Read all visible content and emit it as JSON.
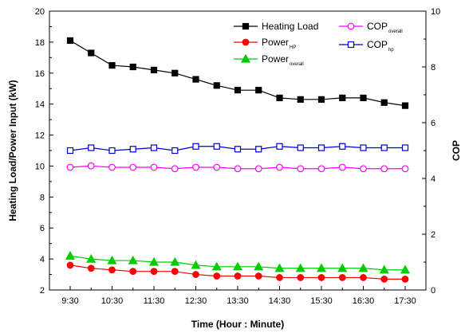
{
  "chart_data": {
    "type": "line",
    "xlabel": "Time (Hour : Minute)",
    "ylabel_left": "Heating Load/Power Input (kW)",
    "ylabel_right": "COP",
    "xlim": [
      "9:30",
      "17:30"
    ],
    "ylim_left": [
      2,
      20
    ],
    "ylim_right": [
      0,
      10
    ],
    "x_tick_labels": [
      "9:30",
      "10:30",
      "11:30",
      "12:30",
      "13:30",
      "14:30",
      "15:30",
      "16:30",
      "17:30"
    ],
    "y_left_tick_labels": [
      "2",
      "4",
      "6",
      "8",
      "10",
      "12",
      "14",
      "16",
      "18",
      "20"
    ],
    "y_right_tick_labels": [
      "0",
      "2",
      "4",
      "6",
      "8",
      "10"
    ],
    "x": [
      "9:30",
      "10:00",
      "10:30",
      "11:00",
      "11:30",
      "12:00",
      "12:30",
      "13:00",
      "13:30",
      "14:00",
      "14:30",
      "15:00",
      "15:30",
      "16:00",
      "16:30",
      "17:00",
      "17:30"
    ],
    "series": [
      {
        "name": "Heating Load",
        "sub": "",
        "axis": "left",
        "color": "#000000",
        "marker": "square",
        "filled": true,
        "values": [
          18.1,
          17.3,
          16.5,
          16.4,
          16.2,
          16.0,
          15.6,
          15.2,
          14.9,
          14.9,
          14.4,
          14.3,
          14.3,
          14.4,
          14.4,
          14.1,
          13.9
        ]
      },
      {
        "name": "Power",
        "sub": "HP",
        "axis": "left",
        "color": "#ff0000",
        "marker": "circle",
        "filled": true,
        "values": [
          3.6,
          3.4,
          3.3,
          3.2,
          3.2,
          3.2,
          3.0,
          2.9,
          2.9,
          2.9,
          2.8,
          2.8,
          2.8,
          2.8,
          2.8,
          2.7,
          2.7
        ]
      },
      {
        "name": "Power",
        "sub": "overall",
        "axis": "left",
        "color": "#00cc00",
        "marker": "triangle",
        "filled": true,
        "values": [
          4.2,
          4.0,
          3.9,
          3.9,
          3.8,
          3.8,
          3.6,
          3.5,
          3.5,
          3.5,
          3.4,
          3.4,
          3.4,
          3.4,
          3.4,
          3.3,
          3.3
        ]
      },
      {
        "name": "COP",
        "sub": "overall",
        "axis": "right",
        "color": "#ff00ff",
        "marker": "circle",
        "filled": false,
        "values": [
          4.4,
          4.45,
          4.4,
          4.4,
          4.4,
          4.35,
          4.4,
          4.4,
          4.35,
          4.35,
          4.4,
          4.35,
          4.35,
          4.4,
          4.35,
          4.35,
          4.35
        ]
      },
      {
        "name": "COP",
        "sub": "hp",
        "axis": "right",
        "color": "#0000cc",
        "marker": "square",
        "filled": false,
        "values": [
          5.0,
          5.1,
          5.0,
          5.05,
          5.1,
          5.0,
          5.15,
          5.15,
          5.05,
          5.05,
          5.15,
          5.1,
          5.1,
          5.15,
          5.1,
          5.1,
          5.1
        ]
      }
    ],
    "legend": "top-right",
    "grid": false
  }
}
